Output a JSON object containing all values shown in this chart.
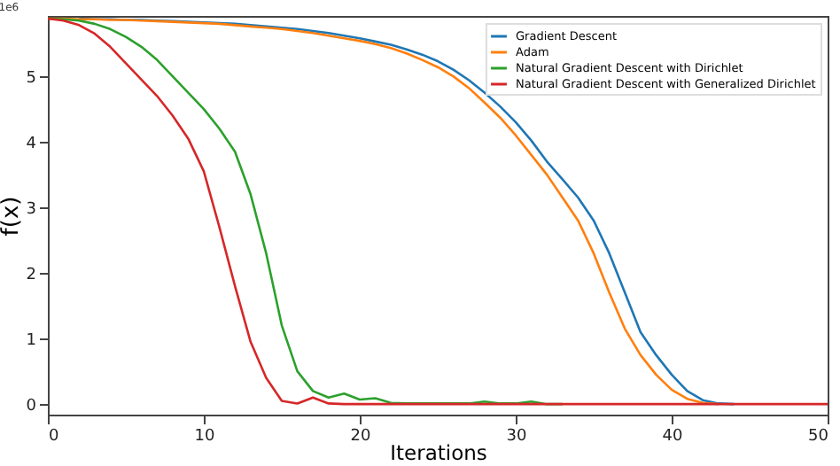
{
  "chart_data": {
    "type": "line",
    "xlabel": "Iterations",
    "ylabel": "f(x)",
    "annotations": [
      "1e6"
    ],
    "x": [
      0,
      1,
      2,
      3,
      4,
      5,
      6,
      7,
      8,
      9,
      10,
      11,
      12,
      13,
      14,
      15,
      16,
      17,
      18,
      19,
      20,
      21,
      22,
      23,
      24,
      25,
      26,
      27,
      28,
      29,
      30,
      31,
      32,
      33,
      34,
      35,
      36,
      37,
      38,
      39,
      40,
      41,
      42,
      43,
      44,
      45,
      46,
      47,
      48,
      49,
      50
    ],
    "series": [
      {
        "name": "Gradient Descent",
        "color": "#1f77b4",
        "values": [
          null,
          null,
          5.88,
          5.87,
          5.87,
          5.86,
          5.86,
          5.85,
          5.84,
          5.83,
          5.82,
          5.81,
          5.8,
          5.78,
          5.76,
          5.74,
          5.72,
          5.69,
          5.66,
          5.62,
          5.58,
          5.53,
          5.48,
          5.41,
          5.33,
          5.23,
          5.1,
          4.94,
          4.75,
          4.54,
          4.3,
          4.02,
          3.7,
          3.43,
          3.15,
          2.8,
          2.3,
          1.7,
          1.1,
          0.75,
          0.45,
          0.2,
          0.06,
          0.01,
          0,
          null,
          null,
          null,
          null,
          null,
          null
        ]
      },
      {
        "name": "Adam",
        "color": "#ff7f0e",
        "values": [
          5.88,
          5.88,
          5.87,
          5.87,
          5.86,
          5.86,
          5.85,
          5.84,
          5.83,
          5.82,
          5.81,
          5.8,
          5.78,
          5.76,
          5.74,
          5.72,
          5.69,
          5.66,
          5.62,
          5.58,
          5.54,
          5.49,
          5.43,
          5.35,
          5.25,
          5.14,
          5.0,
          4.82,
          4.6,
          4.37,
          4.1,
          3.8,
          3.5,
          3.15,
          2.8,
          2.3,
          1.7,
          1.15,
          0.75,
          0.45,
          0.22,
          0.08,
          0.02,
          0,
          null,
          null,
          null,
          null,
          null,
          null,
          null
        ]
      },
      {
        "name": "Natural Gradient Descent with Dirichlet",
        "color": "#2ca02c",
        "values": [
          5.88,
          5.87,
          5.85,
          5.8,
          5.72,
          5.6,
          5.45,
          5.25,
          5.0,
          4.75,
          4.5,
          4.2,
          3.85,
          3.2,
          2.3,
          1.2,
          0.5,
          0.2,
          0.1,
          0.16,
          0.07,
          0.09,
          0.02,
          0.01,
          0.01,
          0.01,
          0.01,
          0.01,
          0.04,
          0.01,
          0.01,
          0.04,
          0,
          0,
          null,
          null,
          null,
          null,
          null,
          null,
          null,
          null,
          null,
          null,
          null,
          null,
          null,
          null,
          null,
          null,
          null
        ]
      },
      {
        "name": "Natural Gradient Descent with Generalized Dirichlet",
        "color": "#d62728",
        "values": [
          5.88,
          5.85,
          5.78,
          5.65,
          5.45,
          5.2,
          4.95,
          4.7,
          4.4,
          4.05,
          3.55,
          2.7,
          1.8,
          0.95,
          0.4,
          0.05,
          0.01,
          0.1,
          0.01,
          0,
          0,
          0,
          0,
          0,
          0,
          0,
          0,
          0,
          0,
          0,
          0,
          0,
          0,
          0,
          0,
          0,
          0,
          0,
          0,
          0,
          0,
          0,
          0,
          0,
          0,
          0,
          0,
          0,
          0,
          0,
          0
        ]
      }
    ],
    "xlim": [
      0,
      50
    ],
    "xticks": [
      0,
      10,
      20,
      30,
      40,
      50
    ],
    "ylim": [
      -0.16,
      5.92
    ],
    "yticks": [
      0,
      1,
      2,
      3,
      4,
      5
    ],
    "legend": "top right",
    "marker": "none"
  }
}
